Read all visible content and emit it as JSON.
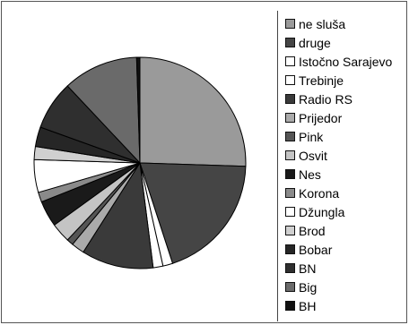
{
  "chart_data": {
    "type": "pie",
    "title": "",
    "categories": [
      "ne sluša",
      "druge",
      "Istočno Sarajevo",
      "Trebinje",
      "Radio RS",
      "Prijedor",
      "Pink",
      "Osvit",
      "Nes",
      "Korona",
      "Džungla",
      "Brod",
      "Bobar",
      "BN",
      "Big",
      "BH"
    ],
    "legend_order": [
      "ne sluša",
      "druge",
      "Istočno Sarajevo",
      "Trebinje",
      "Radio RS",
      "Prijedor",
      "Pink",
      "Osvit",
      "Nes",
      "Korona",
      "Džungla",
      "Brod",
      "Bobar",
      "BN",
      "Big",
      "BH"
    ],
    "slice_order": [
      "ne sluša",
      "druge",
      "Istočno Sarajevo",
      "Trebinje",
      "Radio RS",
      "Prijedor",
      "Pink",
      "Osvit",
      "Nes",
      "Korona",
      "Džungla",
      "Brod",
      "Bobar",
      "BN",
      "Big",
      "BH"
    ],
    "values": [
      25.5,
      19.5,
      1.5,
      1.5,
      11.0,
      2.0,
      1.0,
      3.0,
      4.0,
      1.5,
      5.0,
      2.0,
      3.0,
      7.5,
      11.5,
      0.5
    ],
    "colors": [
      "#9a9a9a",
      "#454545",
      "#ffffff",
      "#ffffff",
      "#3a3a3a",
      "#aaaaaa",
      "#555555",
      "#c4c4c4",
      "#1a1a1a",
      "#8a8a8a",
      "#ffffff",
      "#d0d0d0",
      "#262626",
      "#2f2f2f",
      "#6a6a6a",
      "#111111"
    ],
    "legend": {
      "position": "right"
    }
  }
}
